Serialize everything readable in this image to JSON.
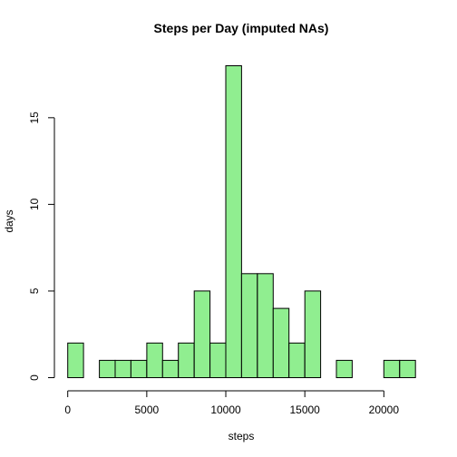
{
  "chart_data": {
    "type": "bar",
    "title": "Steps per Day (imputed NAs)",
    "xlabel": "steps",
    "ylabel": "days",
    "bin_width": 1000,
    "xlim": [
      0,
      22000
    ],
    "ylim": [
      0,
      18
    ],
    "x_ticks": [
      0,
      5000,
      10000,
      15000,
      20000
    ],
    "y_ticks": [
      0,
      5,
      10,
      15
    ],
    "bar_color": "#90EE90",
    "bins": [
      {
        "start": 0,
        "end": 1000,
        "count": 2
      },
      {
        "start": 1000,
        "end": 2000,
        "count": 0
      },
      {
        "start": 2000,
        "end": 3000,
        "count": 1
      },
      {
        "start": 3000,
        "end": 4000,
        "count": 1
      },
      {
        "start": 4000,
        "end": 5000,
        "count": 1
      },
      {
        "start": 5000,
        "end": 6000,
        "count": 2
      },
      {
        "start": 6000,
        "end": 7000,
        "count": 1
      },
      {
        "start": 7000,
        "end": 8000,
        "count": 2
      },
      {
        "start": 8000,
        "end": 9000,
        "count": 5
      },
      {
        "start": 9000,
        "end": 10000,
        "count": 2
      },
      {
        "start": 10000,
        "end": 11000,
        "count": 18
      },
      {
        "start": 11000,
        "end": 12000,
        "count": 6
      },
      {
        "start": 12000,
        "end": 13000,
        "count": 6
      },
      {
        "start": 13000,
        "end": 14000,
        "count": 4
      },
      {
        "start": 14000,
        "end": 15000,
        "count": 2
      },
      {
        "start": 15000,
        "end": 16000,
        "count": 5
      },
      {
        "start": 16000,
        "end": 17000,
        "count": 0
      },
      {
        "start": 17000,
        "end": 18000,
        "count": 1
      },
      {
        "start": 18000,
        "end": 19000,
        "count": 0
      },
      {
        "start": 19000,
        "end": 20000,
        "count": 0
      },
      {
        "start": 20000,
        "end": 21000,
        "count": 1
      },
      {
        "start": 21000,
        "end": 22000,
        "count": 1
      }
    ]
  }
}
